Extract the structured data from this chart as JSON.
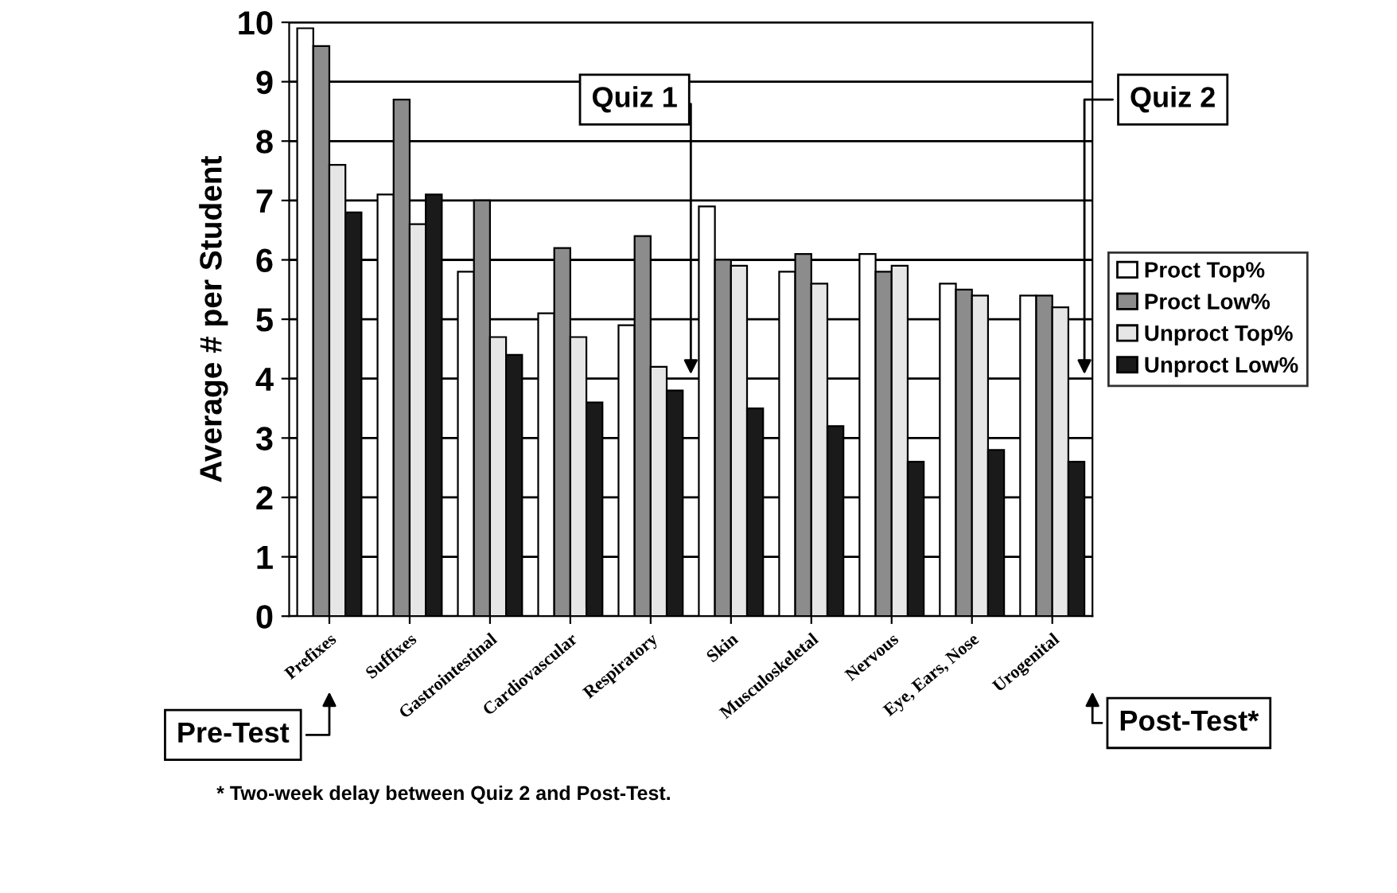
{
  "chart_data": {
    "type": "bar",
    "ylabel": "Average # per Student",
    "categories": [
      "Prefixes",
      "Suffixes",
      "Gastrointestinal",
      "Cardiovascular",
      "Respiratory",
      "Skin",
      "Musculoskeletal",
      "Nervous",
      "Eye, Ears, Nose",
      "Urogenital"
    ],
    "series": [
      {
        "name": "Proct Top%",
        "color": "#ffffff",
        "values": [
          9.9,
          7.1,
          5.8,
          5.1,
          4.9,
          6.9,
          5.8,
          6.1,
          5.6,
          5.4
        ]
      },
      {
        "name": "Proct Low%",
        "color": "#8c8c8c",
        "values": [
          9.6,
          8.7,
          7.0,
          6.2,
          6.4,
          6.0,
          6.1,
          5.8,
          5.5,
          5.4
        ]
      },
      {
        "name": "Unproct Top%",
        "color": "#e6e6e6",
        "values": [
          7.6,
          6.6,
          4.7,
          4.7,
          4.2,
          5.9,
          5.6,
          5.9,
          5.4,
          5.2
        ]
      },
      {
        "name": "Unproct Low%",
        "color": "#1a1a1a",
        "values": [
          6.8,
          7.1,
          4.4,
          3.6,
          3.8,
          3.5,
          3.2,
          2.6,
          2.8,
          2.6
        ]
      }
    ],
    "ylim": [
      0,
      10
    ],
    "yticks": [
      0,
      1,
      2,
      3,
      4,
      5,
      6,
      7,
      8,
      9,
      10
    ],
    "grid": "y",
    "legend": "right",
    "annotations": [
      "Quiz 1",
      "Quiz 2",
      "Pre-Test",
      "Post-Test*",
      "* Two-week delay between Quiz 2 and Post-Test."
    ]
  }
}
